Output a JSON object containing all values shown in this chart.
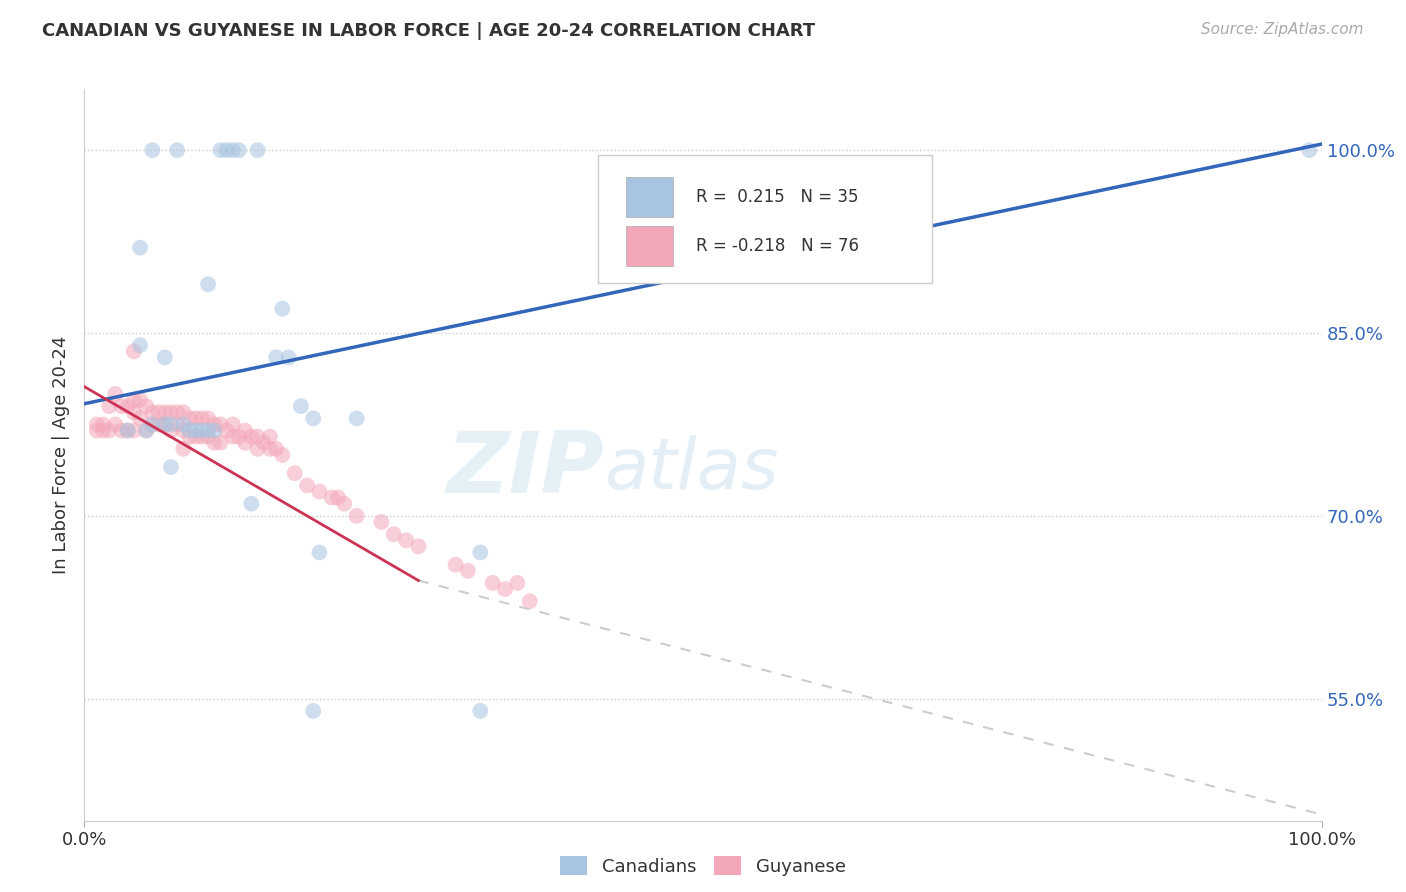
{
  "title": "CANADIAN VS GUYANESE IN LABOR FORCE | AGE 20-24 CORRELATION CHART",
  "source": "Source: ZipAtlas.com",
  "ylabel": "In Labor Force | Age 20-24",
  "xlim": [
    0.0,
    1.0
  ],
  "ylim": [
    0.45,
    1.05
  ],
  "yticks": [
    0.55,
    0.7,
    0.85,
    1.0
  ],
  "ytick_labels": [
    "55.0%",
    "70.0%",
    "85.0%",
    "100.0%"
  ],
  "xtick_labels": [
    "0.0%",
    "100.0%"
  ],
  "xticks": [
    0.0,
    1.0
  ],
  "r_canadian": 0.215,
  "n_canadian": 35,
  "r_guyanese": -0.218,
  "n_guyanese": 76,
  "canadian_color": "#a8c4e0",
  "guyanese_color": "#f4a7b9",
  "trend_canadian_color": "#3366bb",
  "trend_guyanese_color": "#cc3355",
  "trend_guyanese_dash_color": "#cccccc",
  "background_color": "#ffffff",
  "canadians_x": [
    0.055,
    0.075,
    0.11,
    0.115,
    0.12,
    0.125,
    0.14,
    0.045,
    0.1,
    0.16,
    0.045,
    0.065,
    0.155,
    0.165,
    0.175,
    0.185,
    0.22,
    0.035,
    0.05,
    0.055,
    0.065,
    0.07,
    0.08,
    0.085,
    0.09,
    0.095,
    0.1,
    0.105,
    0.07,
    0.135,
    0.19,
    0.32,
    0.185,
    0.32,
    0.99
  ],
  "canadians_y": [
    1.0,
    1.0,
    1.0,
    1.0,
    1.0,
    1.0,
    1.0,
    0.92,
    0.89,
    0.87,
    0.84,
    0.83,
    0.83,
    0.83,
    0.79,
    0.78,
    0.78,
    0.77,
    0.77,
    0.775,
    0.775,
    0.775,
    0.775,
    0.77,
    0.77,
    0.77,
    0.77,
    0.77,
    0.74,
    0.71,
    0.67,
    0.67,
    0.54,
    0.54,
    1.0
  ],
  "guyanese_x": [
    0.01,
    0.01,
    0.015,
    0.015,
    0.02,
    0.02,
    0.025,
    0.025,
    0.03,
    0.03,
    0.035,
    0.035,
    0.04,
    0.04,
    0.04,
    0.045,
    0.045,
    0.05,
    0.05,
    0.055,
    0.055,
    0.06,
    0.06,
    0.065,
    0.065,
    0.07,
    0.07,
    0.075,
    0.075,
    0.08,
    0.08,
    0.085,
    0.085,
    0.09,
    0.09,
    0.095,
    0.095,
    0.1,
    0.1,
    0.105,
    0.105,
    0.11,
    0.11,
    0.115,
    0.12,
    0.12,
    0.125,
    0.13,
    0.13,
    0.135,
    0.14,
    0.14,
    0.145,
    0.15,
    0.15,
    0.155,
    0.16,
    0.17,
    0.18,
    0.19,
    0.2,
    0.21,
    0.22,
    0.24,
    0.25,
    0.26,
    0.27,
    0.3,
    0.31,
    0.33,
    0.34,
    0.36,
    0.04,
    0.08,
    0.205,
    0.35
  ],
  "guyanese_y": [
    0.775,
    0.77,
    0.775,
    0.77,
    0.79,
    0.77,
    0.8,
    0.775,
    0.79,
    0.77,
    0.79,
    0.77,
    0.795,
    0.785,
    0.77,
    0.795,
    0.78,
    0.79,
    0.77,
    0.785,
    0.775,
    0.785,
    0.775,
    0.785,
    0.775,
    0.785,
    0.77,
    0.785,
    0.775,
    0.785,
    0.77,
    0.78,
    0.765,
    0.78,
    0.765,
    0.78,
    0.765,
    0.78,
    0.765,
    0.775,
    0.76,
    0.775,
    0.76,
    0.77,
    0.775,
    0.765,
    0.765,
    0.77,
    0.76,
    0.765,
    0.765,
    0.755,
    0.76,
    0.765,
    0.755,
    0.755,
    0.75,
    0.735,
    0.725,
    0.72,
    0.715,
    0.71,
    0.7,
    0.695,
    0.685,
    0.68,
    0.675,
    0.66,
    0.655,
    0.645,
    0.64,
    0.63,
    0.835,
    0.755,
    0.715,
    0.645
  ],
  "grid_color": "#cccccc",
  "dot_size": 130,
  "dot_alpha": 0.55,
  "trend_canadian_start_x": 0.0,
  "trend_canadian_start_y": 0.792,
  "trend_canadian_end_x": 1.0,
  "trend_canadian_end_y": 1.005,
  "trend_guyanese_start_x": 0.0,
  "trend_guyanese_start_y": 0.806,
  "trend_guyanese_solid_end_x": 0.27,
  "trend_guyanese_solid_end_y": 0.647,
  "trend_guyanese_dash_end_x": 1.0,
  "trend_guyanese_dash_end_y": 0.455
}
